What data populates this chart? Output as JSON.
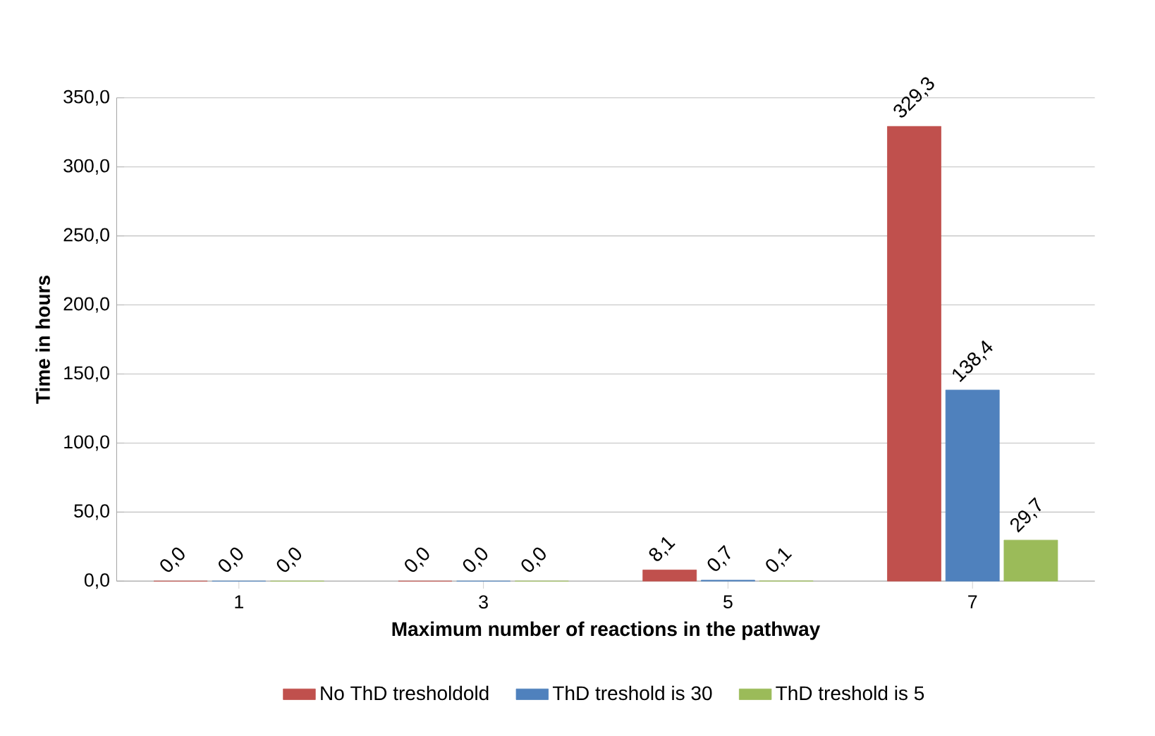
{
  "chart_data": {
    "type": "bar",
    "xlabel": "Maximum number of reactions in the pathway",
    "ylabel": "Time in hours",
    "categories": [
      "1",
      "3",
      "5",
      "7"
    ],
    "series": [
      {
        "name": "No ThD tresholdold",
        "color": "#c0504d",
        "values": [
          0.0,
          0.0,
          8.1,
          329.3
        ],
        "value_labels": [
          "0,0",
          "0,0",
          "8,1",
          "329,3"
        ]
      },
      {
        "name": "ThD  treshold is 30",
        "color": "#4f81bd",
        "values": [
          0.0,
          0.0,
          0.7,
          138.4
        ],
        "value_labels": [
          "0,0",
          "0,0",
          "0,7",
          "138,4"
        ]
      },
      {
        "name": "ThD treshold is 5",
        "color": "#9bbb59",
        "values": [
          0.0,
          0.0,
          0.1,
          29.7
        ],
        "value_labels": [
          "0,0",
          "0,0",
          "0,1",
          "29,7"
        ]
      }
    ],
    "ylim": [
      0,
      350
    ],
    "yticks": [
      {
        "value": 0,
        "label": "0,0"
      },
      {
        "value": 50,
        "label": "50,0"
      },
      {
        "value": 100,
        "label": "100,0"
      },
      {
        "value": 150,
        "label": "150,0"
      },
      {
        "value": 200,
        "label": "200,0"
      },
      {
        "value": 250,
        "label": "250,0"
      },
      {
        "value": 300,
        "label": "300,0"
      },
      {
        "value": 350,
        "label": "350,0"
      }
    ],
    "grid": "y",
    "legend": "bottom"
  }
}
